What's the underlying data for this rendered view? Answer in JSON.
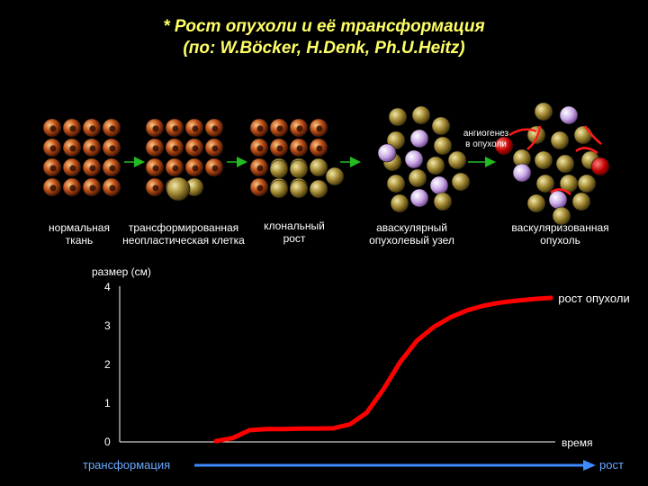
{
  "title": {
    "line1": "* Рост опухоли и её трансформация",
    "line2": "(по: W.Böcker, H.Denk, Ph.U.Heitz)"
  },
  "stages": [
    {
      "label1": "нормальная",
      "label2": "ткань"
    },
    {
      "label1": "трансформированная",
      "label2": "неопластическая клетка"
    },
    {
      "label1": "клональный",
      "label2": "рост"
    },
    {
      "label1": "аваскулярный",
      "label2": "опухолевый узел"
    },
    {
      "label1": "васкуляризованная",
      "label2": "опухоль"
    }
  ],
  "angiogenesis": {
    "line1": "ангиогенез",
    "line2": "в опухоли"
  },
  "chart_data": {
    "type": "line",
    "ylabel": "размер (см)",
    "xlabel": "время",
    "yticks": [
      "0",
      "1",
      "2",
      "3",
      "4"
    ],
    "ylim": [
      0,
      4
    ],
    "annotation": "рост опухоли",
    "series": [
      {
        "values_x": [
          0.0,
          0.05,
          0.1,
          0.15,
          0.2,
          0.25,
          0.3,
          0.35,
          0.4,
          0.45,
          0.5,
          0.55,
          0.6,
          0.65,
          0.7,
          0.75,
          0.8,
          0.85,
          0.9,
          0.95,
          1.0
        ],
        "values_y": [
          0.02,
          0.1,
          0.3,
          0.33,
          0.33,
          0.34,
          0.34,
          0.35,
          0.45,
          0.75,
          1.35,
          2.05,
          2.6,
          2.95,
          3.2,
          3.38,
          3.5,
          3.58,
          3.63,
          3.67,
          3.7
        ]
      }
    ],
    "colors": {
      "line": "#ff0000"
    }
  },
  "bottom_arrow": {
    "left_label": "трансформация",
    "right_label": "рост",
    "color": "#3d8bff"
  }
}
